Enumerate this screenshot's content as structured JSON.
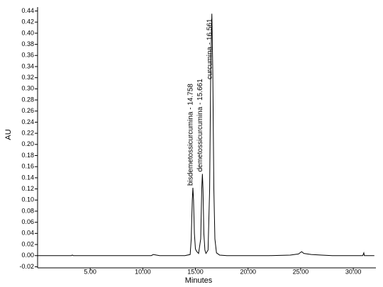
{
  "chart_data": {
    "type": "line",
    "x_label": "Minutes",
    "y_label": "AU",
    "annotations": [
      {
        "text": "bisdemetossicurcumina - 14.758",
        "x": 14.758
      },
      {
        "text": "demetossicurcumina - 15.661",
        "x": 15.661
      },
      {
        "text": "curcumina - 16.561",
        "x": 16.561
      }
    ],
    "x": [
      0,
      2,
      3.2,
      3.3,
      3.4,
      6,
      10.8,
      11,
      11.3,
      11.6,
      14,
      14.5,
      14.6,
      14.7,
      14.758,
      14.82,
      14.9,
      15.0,
      15.1,
      15.3,
      15.5,
      15.6,
      15.661,
      15.72,
      15.8,
      15.9,
      16.0,
      16.2,
      16.35,
      16.45,
      16.561,
      16.65,
      16.75,
      16.85,
      17.0,
      17.3,
      18,
      22,
      24,
      24.8,
      25.0,
      25.1,
      25.3,
      26,
      27,
      28,
      30.9,
      31.0,
      31.05,
      32
    ],
    "series": [
      {
        "color": "#000000",
        "values": [
          0,
          0,
          0,
          0.001,
          0,
          0,
          0,
          0.002,
          0.001,
          0,
          0,
          0.002,
          0.03,
          0.1,
          0.122,
          0.1,
          0.04,
          0.012,
          0.008,
          0.004,
          0.03,
          0.12,
          0.147,
          0.12,
          0.04,
          0.01,
          0.004,
          0.01,
          0.12,
          0.33,
          0.435,
          0.33,
          0.12,
          0.03,
          0.005,
          0.001,
          0,
          0,
          0.001,
          0.003,
          0.006,
          0.007,
          0.004,
          0.002,
          0.001,
          0,
          0,
          0.005,
          0,
          0
        ]
      }
    ],
    "xlim": [
      0,
      32.15
    ],
    "ylim": [
      -0.022,
      0.447
    ],
    "xticks": [
      {
        "value": 5,
        "label": "5.00"
      },
      {
        "value": 10,
        "label": "10.00"
      },
      {
        "value": 15,
        "label": "15.00"
      },
      {
        "value": 20,
        "label": "20.00"
      },
      {
        "value": 25,
        "label": "25.00"
      },
      {
        "value": 30,
        "label": "30.00"
      }
    ],
    "yticks": [
      {
        "value": -0.02,
        "label": "-0.02"
      },
      {
        "value": 0,
        "label": "0.00"
      },
      {
        "value": 0.02,
        "label": "0.02"
      },
      {
        "value": 0.04,
        "label": "0.04"
      },
      {
        "value": 0.06,
        "label": "0.06"
      },
      {
        "value": 0.08,
        "label": "0.08"
      },
      {
        "value": 0.1,
        "label": "0.10"
      },
      {
        "value": 0.12,
        "label": "0.12"
      },
      {
        "value": 0.14,
        "label": "0.14"
      },
      {
        "value": 0.16,
        "label": "0.16"
      },
      {
        "value": 0.18,
        "label": "0.18"
      },
      {
        "value": 0.2,
        "label": "0.20"
      },
      {
        "value": 0.22,
        "label": "0.22"
      },
      {
        "value": 0.24,
        "label": "0.24"
      },
      {
        "value": 0.26,
        "label": "0.26"
      },
      {
        "value": 0.28,
        "label": "0.28"
      },
      {
        "value": 0.3,
        "label": "0.30"
      },
      {
        "value": 0.32,
        "label": "0.32"
      },
      {
        "value": 0.34,
        "label": "0.34"
      },
      {
        "value": 0.36,
        "label": "0.36"
      },
      {
        "value": 0.38,
        "label": "0.38"
      },
      {
        "value": 0.4,
        "label": "0.40"
      },
      {
        "value": 0.42,
        "label": "0.42"
      },
      {
        "value": 0.44,
        "label": "0.44"
      }
    ],
    "grid": false
  }
}
